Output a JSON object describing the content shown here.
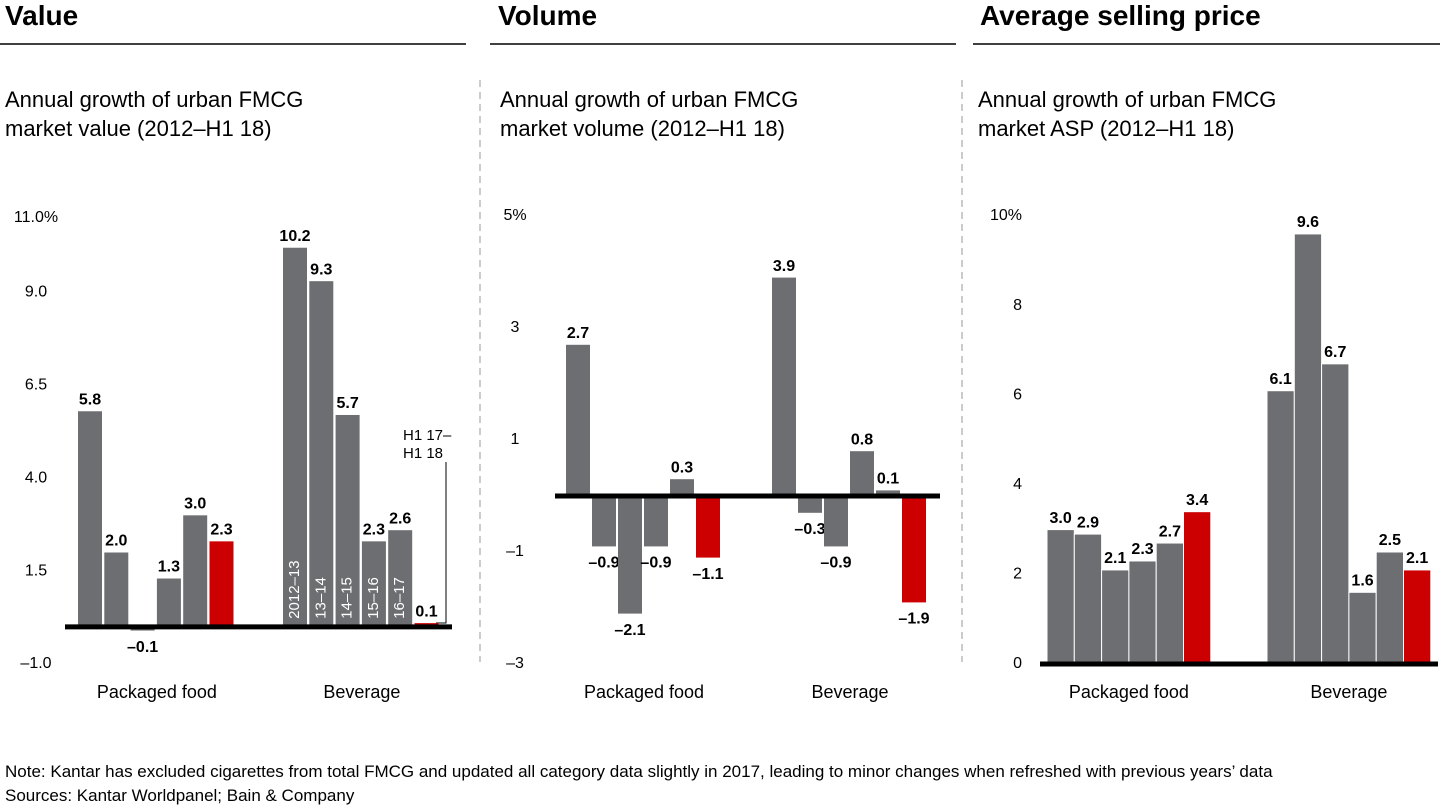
{
  "chart_data": [
    {
      "type": "bar",
      "title": "Value",
      "subtitle": "Annual growth of urban FMCG market value (2012–H1 18)",
      "categories": [
        "Packaged food",
        "Beverage"
      ],
      "ylim": [
        -1,
        11
      ],
      "yticks": [
        {
          "value": -1,
          "label": "–1.0"
        },
        {
          "value": 1.5,
          "label": "1.5"
        },
        {
          "value": 4,
          "label": "4.0"
        },
        {
          "value": 6.5,
          "label": "6.5"
        },
        {
          "value": 9,
          "label": "9.0"
        },
        {
          "value": 11,
          "label": "11.0%"
        }
      ],
      "series": [
        {
          "name": "2012–13",
          "color": "#6d6e71",
          "values": [
            5.8,
            10.2
          ],
          "value_labels": [
            "5.8",
            "10.2"
          ]
        },
        {
          "name": "13–14",
          "color": "#6d6e71",
          "values": [
            2.0,
            9.3
          ],
          "value_labels": [
            "2.0",
            "9.3"
          ]
        },
        {
          "name": "14–15",
          "color": "#6d6e71",
          "values": [
            -0.1,
            5.7
          ],
          "value_labels": [
            "–0.1",
            "5.7"
          ]
        },
        {
          "name": "15–16",
          "color": "#6d6e71",
          "values": [
            1.3,
            2.3
          ],
          "value_labels": [
            "1.3",
            "2.3"
          ]
        },
        {
          "name": "16–17",
          "color": "#6d6e71",
          "values": [
            3.0,
            2.6
          ],
          "value_labels": [
            "3.0",
            "2.6"
          ]
        },
        {
          "name": "H1 17–H1 18",
          "color": "#cc0000",
          "values": [
            2.3,
            0.1
          ],
          "value_labels": [
            "2.3",
            "0.1"
          ]
        }
      ]
    },
    {
      "type": "bar",
      "title": "Volume",
      "subtitle": "Annual growth of urban FMCG market volume (2012–H1 18)",
      "categories": [
        "Packaged food",
        "Beverage"
      ],
      "ylim": [
        -3,
        5
      ],
      "yticks": [
        {
          "value": -3,
          "label": "–3"
        },
        {
          "value": -1,
          "label": "–1"
        },
        1,
        3,
        {
          "value": 5,
          "label": "5%"
        }
      ],
      "series": [
        {
          "color": "#6d6e71",
          "values": [
            2.7,
            3.9
          ],
          "value_labels": [
            "2.7",
            "3.9"
          ]
        },
        {
          "color": "#6d6e71",
          "values": [
            -0.9,
            -0.3
          ],
          "value_labels": [
            "–0.9",
            "–0.3"
          ]
        },
        {
          "color": "#6d6e71",
          "values": [
            -2.1,
            -0.9
          ],
          "value_labels": [
            "–2.1",
            "–0.9"
          ]
        },
        {
          "color": "#6d6e71",
          "values": [
            -0.9,
            0.8
          ],
          "value_labels": [
            "–0.9",
            "0.8"
          ]
        },
        {
          "color": "#6d6e71",
          "values": [
            0.3,
            0.1
          ],
          "value_labels": [
            "0.3",
            "0.1"
          ]
        },
        {
          "color": "#cc0000",
          "values": [
            -1.1,
            -1.9
          ],
          "value_labels": [
            "–1.1",
            "–1.9"
          ]
        }
      ]
    },
    {
      "type": "bar",
      "title": "Average selling price",
      "subtitle": "Annual growth of urban FMCG market ASP (2012–H1 18)",
      "categories": [
        "Packaged food",
        "Beverage"
      ],
      "ylim": [
        0,
        10
      ],
      "yticks": [
        0,
        2,
        4,
        6,
        8,
        {
          "value": 10,
          "label": "10%"
        }
      ],
      "series": [
        {
          "color": "#6d6e71",
          "values": [
            3.0,
            6.1
          ],
          "value_labels": [
            "3.0",
            "6.1"
          ]
        },
        {
          "color": "#6d6e71",
          "values": [
            2.9,
            9.6
          ],
          "value_labels": [
            "2.9",
            "9.6"
          ]
        },
        {
          "color": "#6d6e71",
          "values": [
            2.1,
            6.7
          ],
          "value_labels": [
            "2.1",
            "6.7"
          ]
        },
        {
          "color": "#6d6e71",
          "values": [
            2.3,
            1.6
          ],
          "value_labels": [
            "2.3",
            "1.6"
          ]
        },
        {
          "color": "#6d6e71",
          "values": [
            2.7,
            2.5
          ],
          "value_labels": [
            "2.7",
            "2.5"
          ]
        },
        {
          "color": "#cc0000",
          "values": [
            3.4,
            2.1
          ],
          "value_labels": [
            "3.4",
            "2.1"
          ]
        }
      ]
    }
  ],
  "note": "Note: Kantar has excluded cigarettes from total FMCG and updated all category data slightly in 2017, leading to minor changes when refreshed with previous years’ data",
  "sources": "Sources: Kantar Worldpanel; Bain & Company"
}
